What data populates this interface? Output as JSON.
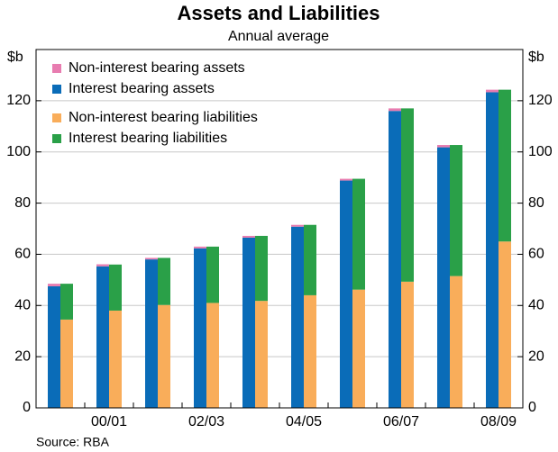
{
  "chart_data": {
    "type": "stacked-bar-pair",
    "title": "Assets and Liabilities",
    "subtitle": "Annual average",
    "y_label": "$b",
    "y2_label": "$b",
    "source": "Source: RBA",
    "categories": [
      null,
      "00/01",
      null,
      "02/03",
      null,
      "04/05",
      null,
      "06/07",
      null,
      "08/09"
    ],
    "series": [
      {
        "name": "Interest bearing assets",
        "color": "#0a6cb8",
        "stack": 0,
        "values": [
          47.5,
          55.3,
          58.0,
          62.3,
          66.5,
          70.8,
          88.8,
          116.0,
          101.8,
          123.3
        ]
      },
      {
        "name": "Non-interest bearing assets",
        "color": "#e87cb0",
        "stack": 0,
        "values": [
          1.0,
          0.8,
          0.6,
          0.7,
          0.7,
          0.7,
          0.7,
          1.0,
          0.9,
          1.0
        ]
      },
      {
        "name": "Non-interest bearing liabilities",
        "color": "#f9ad5a",
        "stack": 1,
        "values": [
          34.5,
          38.0,
          40.2,
          41.0,
          41.8,
          44.0,
          46.2,
          49.3,
          51.5,
          65.0
        ]
      },
      {
        "name": "Interest bearing liabilities",
        "color": "#2aa048",
        "stack": 1,
        "values": [
          14.0,
          18.0,
          18.4,
          22.0,
          25.4,
          27.5,
          43.3,
          67.7,
          51.2,
          59.3
        ]
      }
    ],
    "ylim": [
      0,
      140
    ],
    "yticks": [
      0,
      20,
      40,
      60,
      80,
      100,
      120
    ],
    "y2lim": [
      0,
      140
    ],
    "y2ticks": [
      0,
      20,
      40,
      60,
      80,
      100,
      120
    ],
    "grid": true,
    "legend": "upper-left"
  }
}
